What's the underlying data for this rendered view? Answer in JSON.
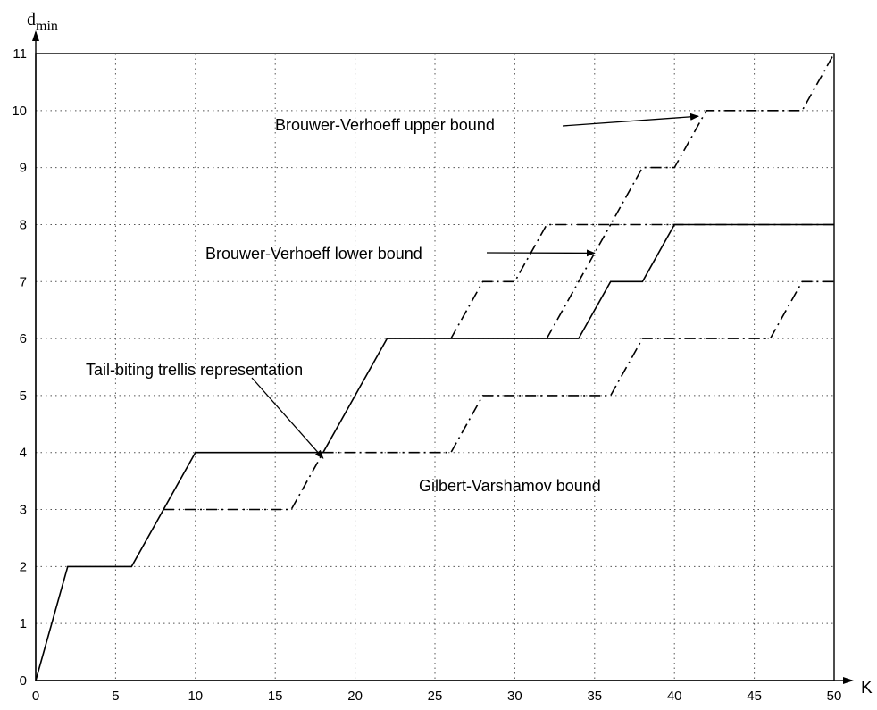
{
  "chart_data": {
    "type": "line",
    "title": "",
    "xlabel": "K",
    "ylabel_main": "d",
    "ylabel_sub": "min",
    "xlim": [
      0,
      50
    ],
    "ylim": [
      0,
      11
    ],
    "xticks": [
      0,
      5,
      10,
      15,
      20,
      25,
      30,
      35,
      40,
      45,
      50
    ],
    "yticks": [
      0,
      1,
      2,
      3,
      4,
      5,
      6,
      7,
      8,
      9,
      10,
      11
    ],
    "grid": true,
    "series": [
      {
        "name": "Tail-biting trellis representation",
        "style": "solid",
        "x": [
          0,
          2,
          6,
          10,
          18,
          22,
          34,
          36,
          38,
          40,
          50
        ],
        "y": [
          0,
          2,
          2,
          4,
          4,
          6,
          6,
          7,
          7,
          8,
          8
        ]
      },
      {
        "name": "Brouwer-Verhoeff upper bound",
        "style": "dashdot",
        "x": [
          26,
          28,
          30,
          32,
          36,
          38,
          40,
          42,
          48,
          50
        ],
        "y": [
          6,
          7,
          7,
          8,
          8,
          9,
          9,
          10,
          10,
          11
        ]
      },
      {
        "name": "Brouwer-Verhoeff lower bound",
        "style": "dashdot",
        "x": [
          32,
          34,
          36,
          40,
          50
        ],
        "y": [
          6,
          7,
          8,
          8,
          8
        ]
      },
      {
        "name": "Gilbert-Varshamov bound",
        "style": "dashdot",
        "x": [
          8,
          16,
          18,
          26,
          28,
          36,
          38,
          46,
          48,
          50
        ],
        "y": [
          3,
          3,
          4,
          4,
          5,
          5,
          6,
          6,
          7,
          7
        ]
      }
    ],
    "annotations": [
      {
        "text": "Brouwer-Verhoeff upper bound",
        "arrow_to": [
          41.5,
          9.9
        ]
      },
      {
        "text": "Brouwer-Verhoeff lower bound",
        "arrow_to": [
          35,
          7.5
        ]
      },
      {
        "text": "Tail-biting trellis representation",
        "arrow_to": [
          18,
          3.9
        ]
      },
      {
        "text": "Gilbert-Varshamov bound",
        "arrow_to": null
      }
    ]
  }
}
